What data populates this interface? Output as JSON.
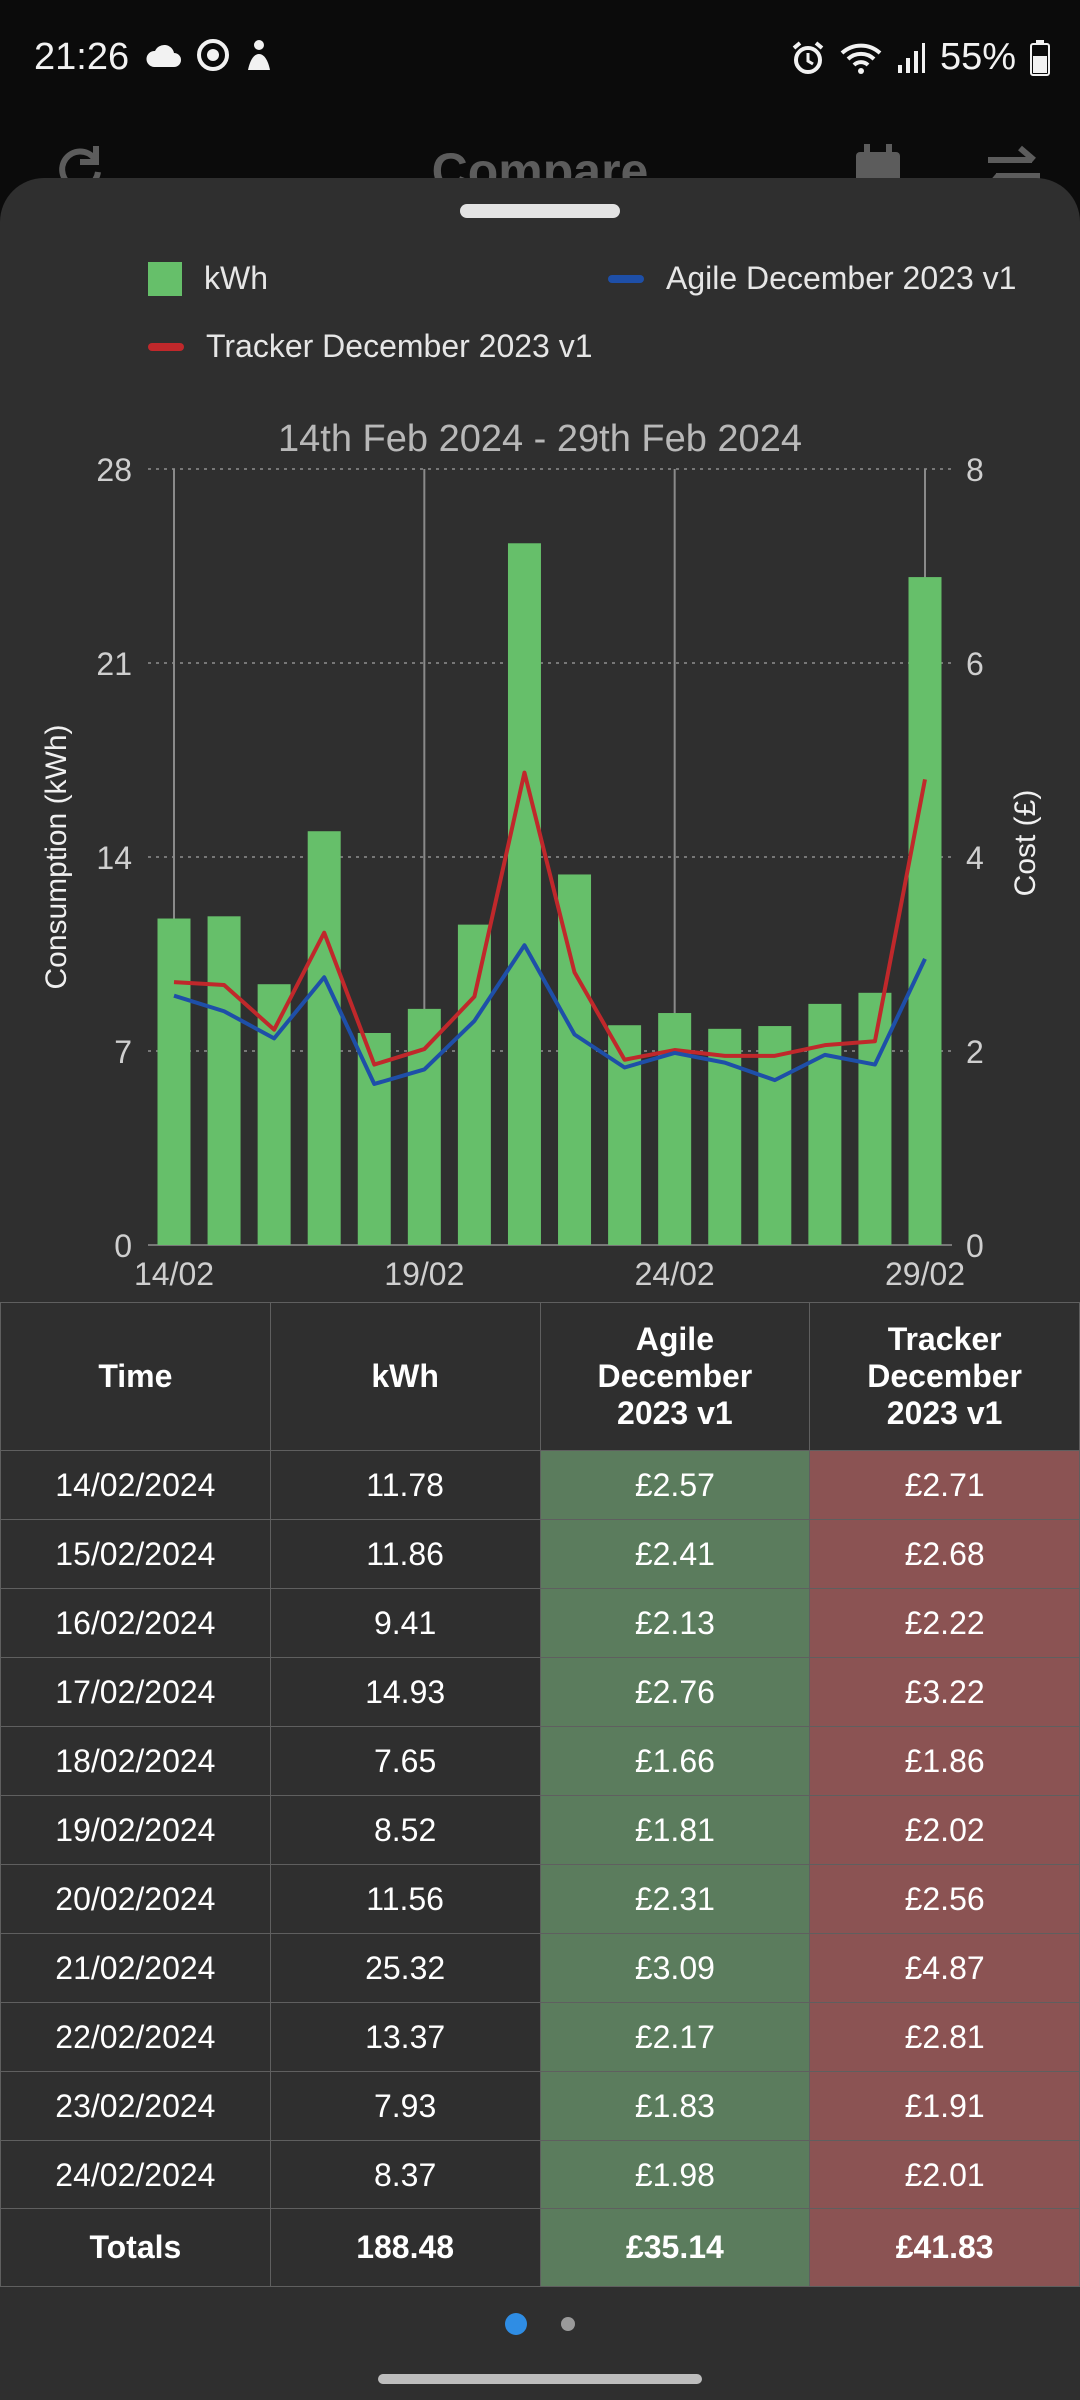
{
  "status_bar": {
    "time": "21:26",
    "battery": "55%",
    "left_icons": [
      "cloud-icon",
      "camera-ring-icon",
      "person-icon"
    ],
    "right_icons": [
      "alarm-icon",
      "wifi-icon",
      "signal-icon",
      "battery-icon"
    ]
  },
  "app_bar": {
    "title": "Compare",
    "icons": [
      "refresh-icon",
      "calendar-icon",
      "swap-icon"
    ]
  },
  "legend": {
    "kwh": "kWh",
    "agile": "Agile December 2023 v1",
    "tracker": "Tracker December 2023 v1"
  },
  "colors": {
    "kwh_bar": "#66bf6a",
    "agile_line": "#1e4fa8",
    "tracker_line": "#c0282b",
    "agile_cell": "#5b7c5d",
    "tracker_cell": "#8b5353",
    "sheet_bg": "#2f2f2f",
    "page_indicator_active": "#2f8de4"
  },
  "chart_data": {
    "type": "bar",
    "title": "14th Feb 2024 - 29th Feb 2024",
    "ylabel": "Consumption (kWh)",
    "y2label": "Cost (£)",
    "ylim": [
      0,
      28
    ],
    "y2lim": [
      0,
      8
    ],
    "yticks": [
      "0",
      "7",
      "14",
      "21",
      "28"
    ],
    "y2ticks": [
      "0",
      "2",
      "4",
      "6",
      "8"
    ],
    "x_tick_labels": [
      "14/02",
      "19/02",
      "24/02",
      "29/02"
    ],
    "x_tick_indices": [
      0,
      5,
      10,
      15
    ],
    "categories": [
      "14/02",
      "15/02",
      "16/02",
      "17/02",
      "18/02",
      "19/02",
      "20/02",
      "21/02",
      "22/02",
      "23/02",
      "24/02",
      "25/02",
      "26/02",
      "27/02",
      "28/02",
      "29/02"
    ],
    "series": [
      {
        "name": "kWh",
        "type": "bar",
        "axis": "left",
        "values": [
          11.78,
          11.86,
          9.41,
          14.93,
          7.65,
          8.52,
          11.56,
          25.32,
          13.37,
          7.93,
          8.37,
          7.8,
          7.9,
          8.7,
          9.1,
          24.1
        ]
      },
      {
        "name": "Agile December 2023 v1",
        "type": "line",
        "axis": "right",
        "values": [
          2.57,
          2.41,
          2.13,
          2.76,
          1.66,
          1.81,
          2.31,
          3.09,
          2.17,
          1.83,
          1.98,
          1.88,
          1.7,
          1.96,
          1.86,
          2.95
        ]
      },
      {
        "name": "Tracker December 2023 v1",
        "type": "line",
        "axis": "right",
        "values": [
          2.71,
          2.68,
          2.22,
          3.22,
          1.86,
          2.02,
          2.56,
          4.87,
          2.81,
          1.91,
          2.01,
          1.95,
          1.95,
          2.06,
          2.1,
          4.8
        ]
      }
    ],
    "grid": true,
    "legend": "top"
  },
  "table": {
    "headers": [
      "Time",
      "kWh",
      "Agile December 2023 v1",
      "Tracker December 2023 v1"
    ],
    "rows": [
      [
        "14/02/2024",
        "11.78",
        "£2.57",
        "£2.71"
      ],
      [
        "15/02/2024",
        "11.86",
        "£2.41",
        "£2.68"
      ],
      [
        "16/02/2024",
        "9.41",
        "£2.13",
        "£2.22"
      ],
      [
        "17/02/2024",
        "14.93",
        "£2.76",
        "£3.22"
      ],
      [
        "18/02/2024",
        "7.65",
        "£1.66",
        "£1.86"
      ],
      [
        "19/02/2024",
        "8.52",
        "£1.81",
        "£2.02"
      ],
      [
        "20/02/2024",
        "11.56",
        "£2.31",
        "£2.56"
      ],
      [
        "21/02/2024",
        "25.32",
        "£3.09",
        "£4.87"
      ],
      [
        "22/02/2024",
        "13.37",
        "£2.17",
        "£2.81"
      ],
      [
        "23/02/2024",
        "7.93",
        "£1.83",
        "£1.91"
      ],
      [
        "24/02/2024",
        "8.37",
        "£1.98",
        "£2.01"
      ]
    ],
    "totals": [
      "Totals",
      "188.48",
      "£35.14",
      "£41.83"
    ]
  },
  "pager": {
    "pages": 2,
    "active": 0
  }
}
